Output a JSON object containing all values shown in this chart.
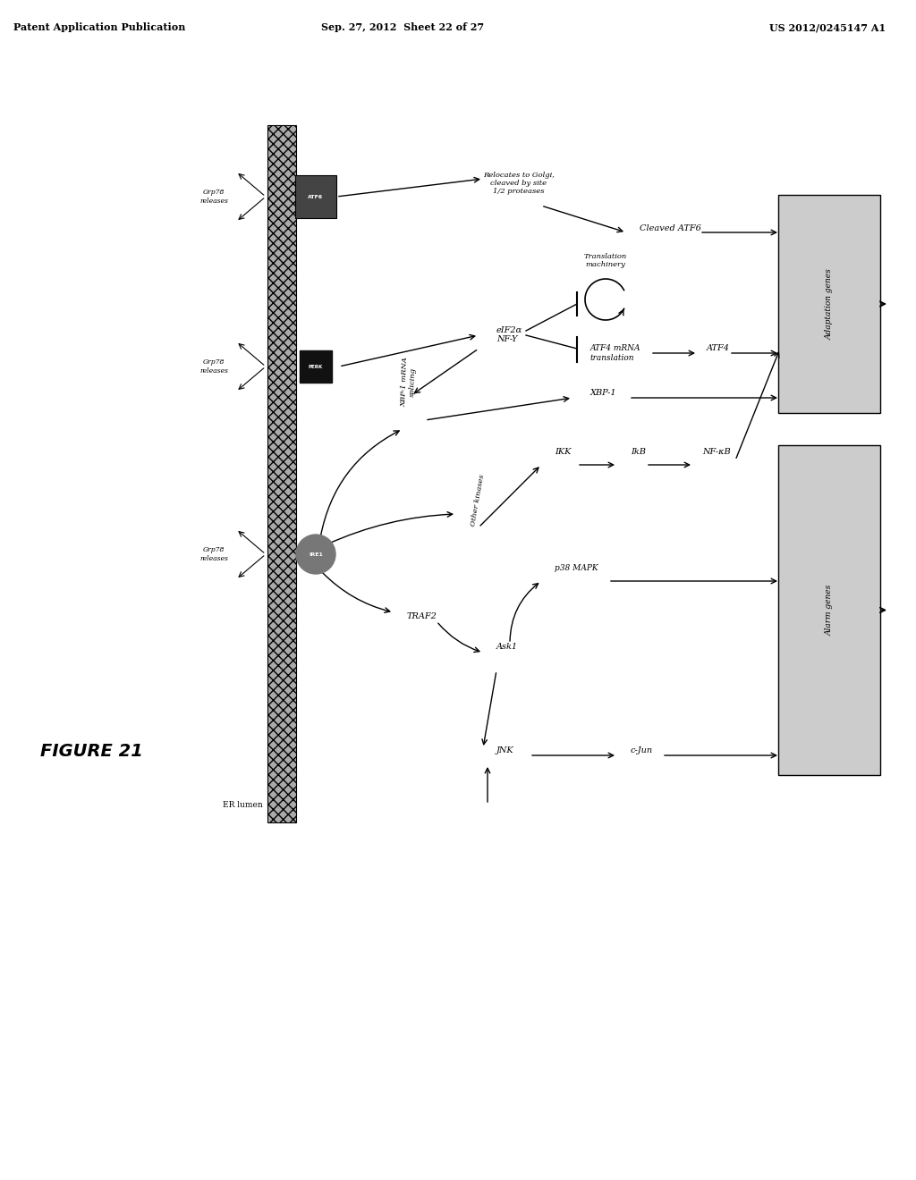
{
  "header_left": "Patent Application Publication",
  "header_center": "Sep. 27, 2012  Sheet 22 of 27",
  "header_right": "US 2012/0245147 A1",
  "figure_label": "FIGURE 21",
  "er_label": "ER lumen",
  "bg_color": "#ffffff",
  "text_color": "#000000",
  "label_Grp78_1": "Grp78\nreleases",
  "label_Grp78_2": "Grp78\nreleases",
  "label_Grp78_3": "Grp78\nreleases",
  "pathway_labels": {
    "traf2": "TRAF2",
    "other_kinases": "Other kinases",
    "ask1": "Ask1",
    "jnk": "JNK",
    "c_jun": "c-Jun",
    "p38_mapk": "p38 MAPK",
    "ikk": "IKK",
    "ikb": "IkB",
    "nf_kb": "NF-κB",
    "xbp1_splicing": "XBP-1 mRNA\nsplicing",
    "nf_y": "NF-Y",
    "xbp1": "XBP-1",
    "eif2a": "eIF2α",
    "translation_machinery": "Translation\nmachinery",
    "atf4_mrna": "ATF4 mRNA\ntranslation",
    "atf4": "ATF4",
    "relocates": "Relocates to Golgi,\ncleaved by site\n1/2 proteases",
    "cleaved_atf6": "Cleaved ATF6",
    "adaptation_genes": "Adaptation genes",
    "alarm_genes": "Alarm genes"
  }
}
